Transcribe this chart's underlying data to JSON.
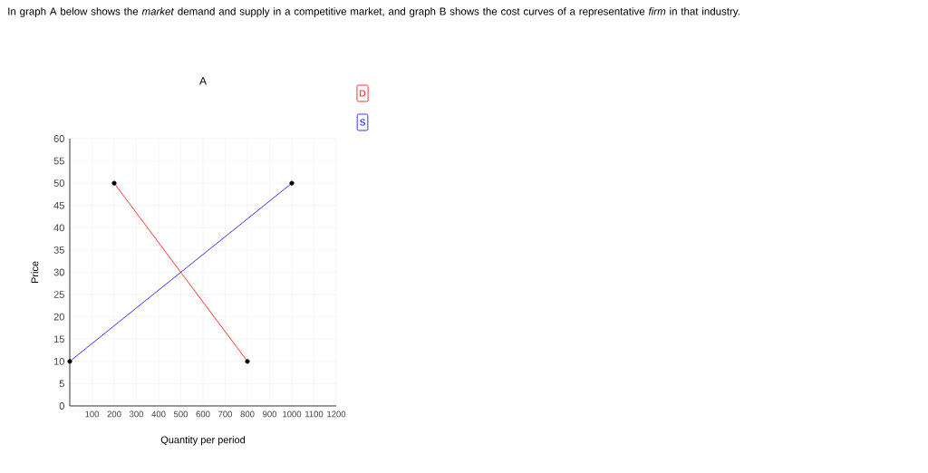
{
  "chart_data": {
    "type": "line",
    "title": "A",
    "xlabel": "Quantity per period",
    "ylabel": "Price",
    "annotations": [
      "In graph A below shows the *market* demand and supply in a competitive market, and graph B shows the cost curves of a representative *firm* in that industry."
    ],
    "series": [
      {
        "name": "D",
        "color": "#ff0000",
        "x": [
          200,
          800
        ],
        "values": [
          50,
          10
        ]
      },
      {
        "name": "S",
        "color": "#0000ff",
        "x": [
          0,
          1000
        ],
        "values": [
          10,
          50
        ]
      }
    ],
    "xlim": [
      0,
      1200
    ],
    "ylim": [
      0,
      60
    ],
    "xticks": [
      100,
      200,
      300,
      400,
      500,
      600,
      700,
      800,
      900,
      1000,
      1100,
      1200
    ],
    "yticks": [
      0,
      5,
      10,
      15,
      20,
      25,
      30,
      35,
      40,
      45,
      50,
      55,
      60
    ],
    "grid": true,
    "marker": "circle",
    "line_style": "solid",
    "legend": "top right"
  }
}
